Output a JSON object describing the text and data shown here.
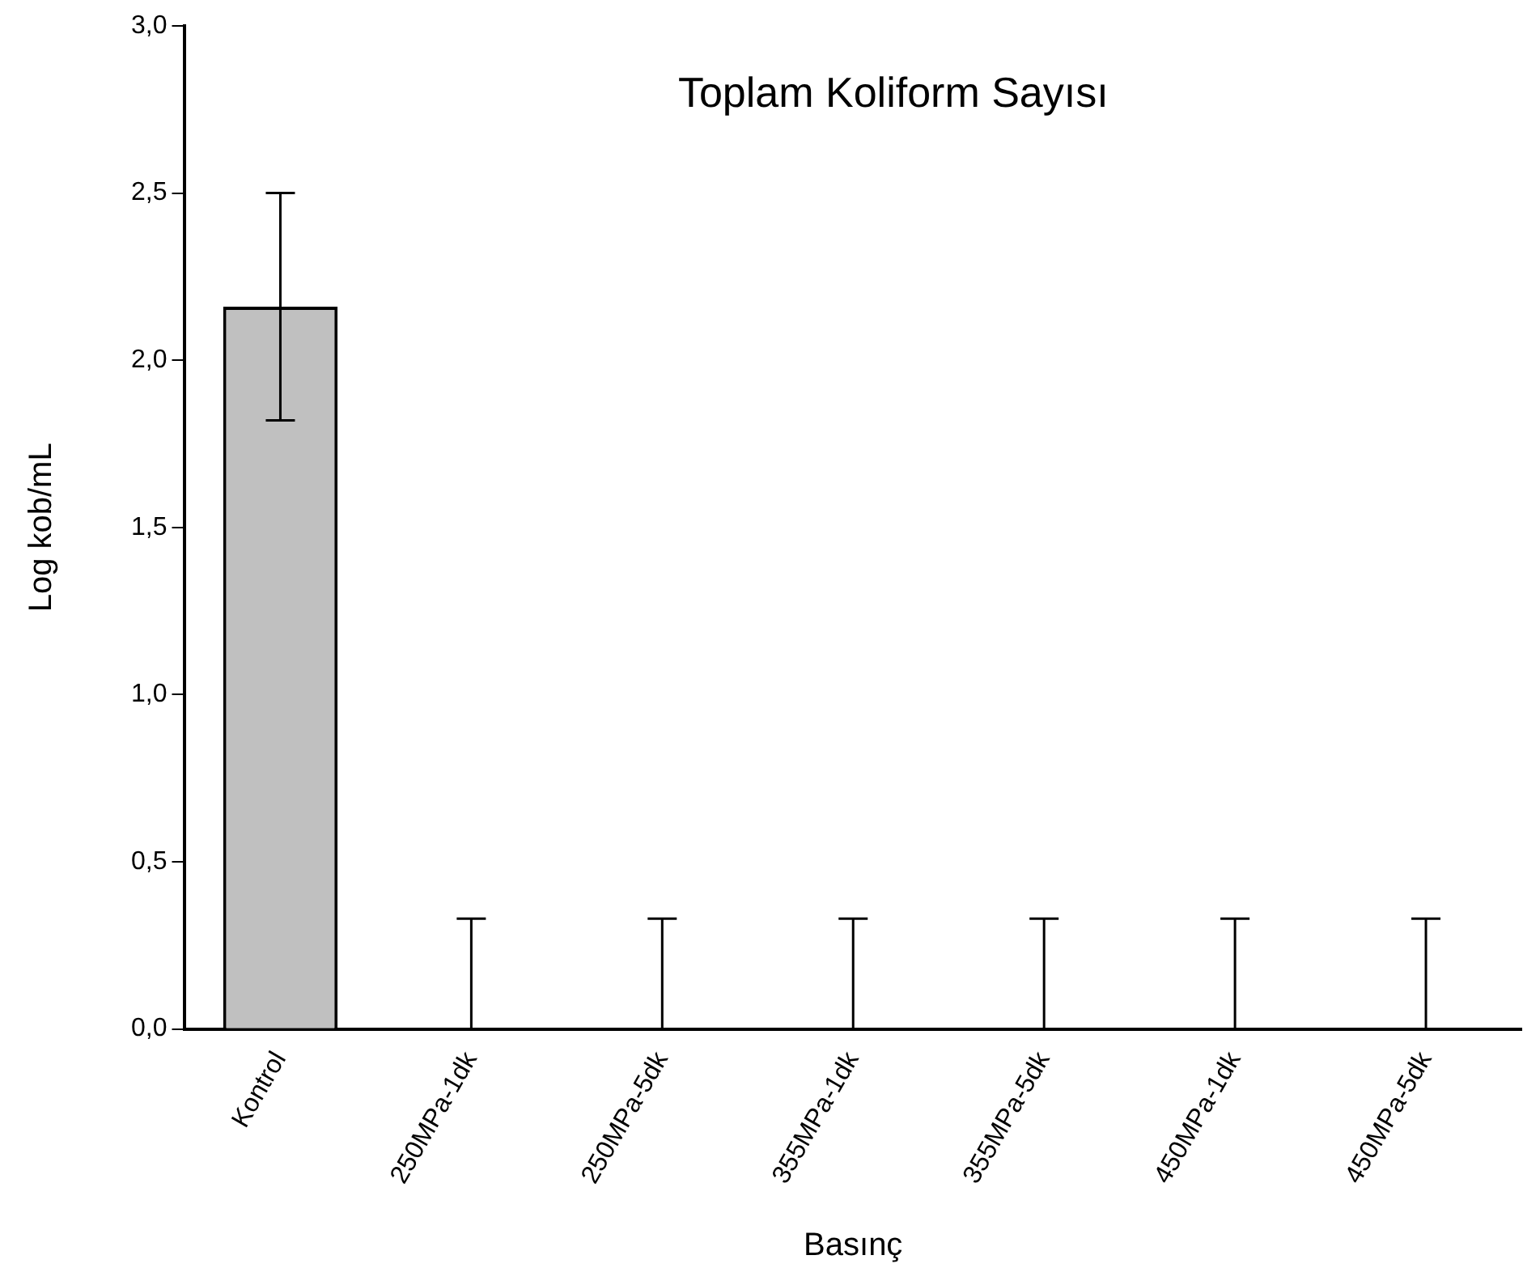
{
  "chart_data": {
    "type": "bar",
    "title": "Toplam Koliform Sayısı",
    "xlabel": "Basınç",
    "ylabel": "Log kob/mL",
    "categories": [
      "Kontrol",
      "250MPa-1dk",
      "250MPa-5dk",
      "355MPa-1dk",
      "355MPa-5dk",
      "450MPa-1dk",
      "450MPa-5dk"
    ],
    "values": [
      2.16,
      0,
      0,
      0,
      0,
      0,
      0
    ],
    "errors": [
      0.34,
      [
        0,
        0.33
      ],
      [
        0,
        0.33
      ],
      [
        0,
        0.33
      ],
      [
        0,
        0.33
      ],
      [
        0,
        0.33
      ],
      [
        0,
        0.33
      ]
    ],
    "color": "#c0c0c0",
    "ylim": [
      0,
      3
    ],
    "yticks": [
      {
        "value": 0,
        "label": "0,0"
      },
      {
        "value": 0.5,
        "label": "0,5"
      },
      {
        "value": 1,
        "label": "1,0"
      },
      {
        "value": 1.5,
        "label": "1,5"
      },
      {
        "value": 2,
        "label": "2,0"
      },
      {
        "value": 2.5,
        "label": "2,5"
      },
      {
        "value": 3,
        "label": "3,0"
      }
    ],
    "grid": false,
    "legend": false
  }
}
